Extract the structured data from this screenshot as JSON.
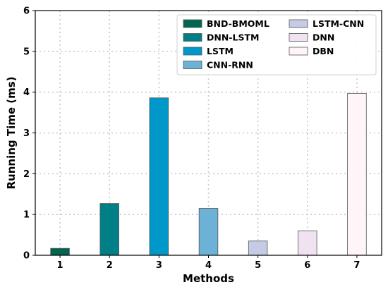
{
  "chart_data": {
    "type": "bar",
    "categories": [
      "1",
      "2",
      "3",
      "4",
      "5",
      "6",
      "7"
    ],
    "series": [
      {
        "name": "BND-BMOML",
        "x": "1",
        "value": 0.17,
        "color": "#00664f"
      },
      {
        "name": "DNN-LSTM",
        "x": "2",
        "value": 1.27,
        "color": "#007f86"
      },
      {
        "name": "LSTM",
        "x": "3",
        "value": 3.86,
        "color": "#0097c9"
      },
      {
        "name": "CNN-RNN",
        "x": "4",
        "value": 1.15,
        "color": "#6cb1d6"
      },
      {
        "name": "LSTM-CNN",
        "x": "5",
        "value": 0.35,
        "color": "#c5cbe5"
      },
      {
        "name": "DNN",
        "x": "6",
        "value": 0.6,
        "color": "#f0e2f0"
      },
      {
        "name": "DBN",
        "x": "7",
        "value": 3.97,
        "color": "#fff5f8"
      }
    ],
    "xlabel": "Methods",
    "ylabel": "Running Time (ms)",
    "ylim": [
      0,
      6
    ],
    "yticks": [
      "0",
      "1",
      "2",
      "3",
      "4",
      "5",
      "6"
    ],
    "grid": true,
    "legend_position": "top-right",
    "legend_columns": 2
  }
}
